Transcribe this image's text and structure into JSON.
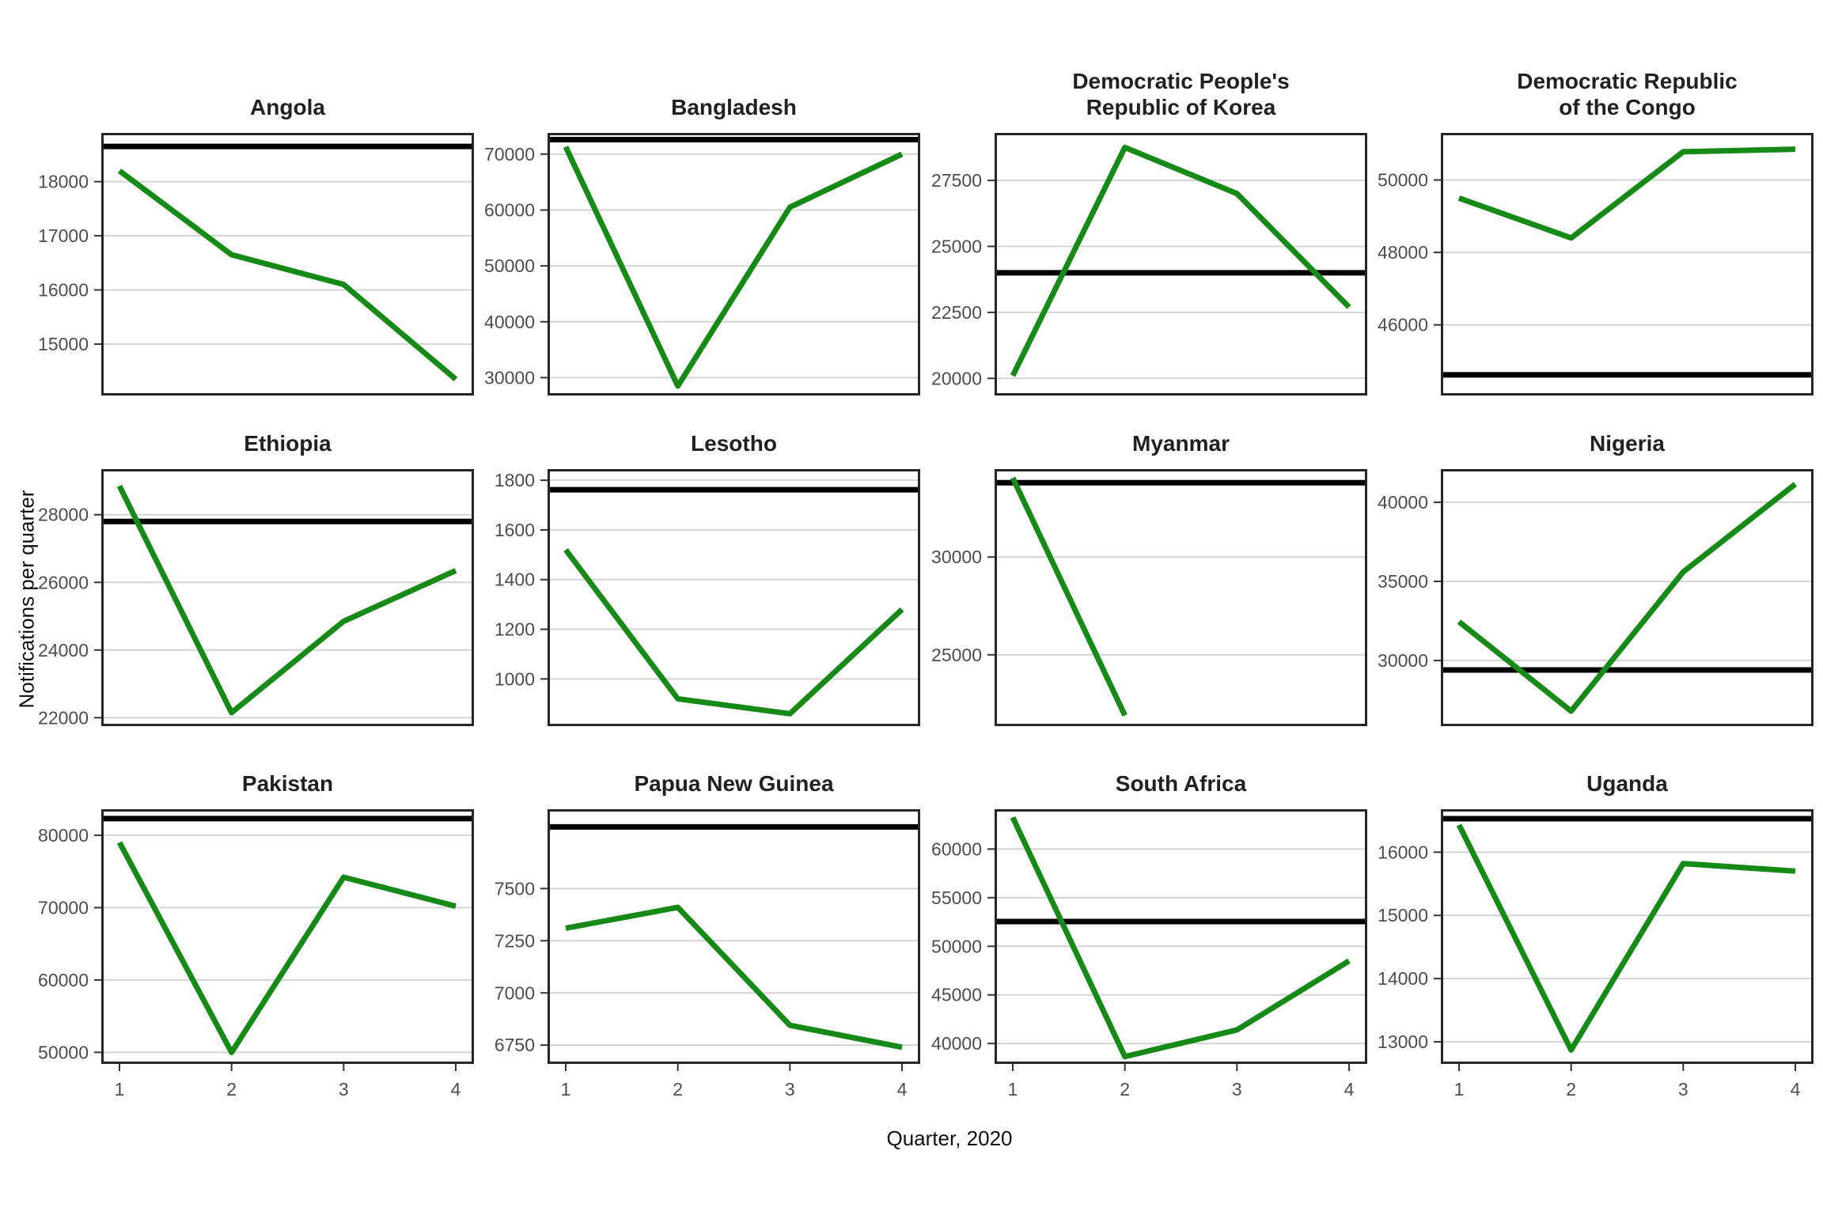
{
  "chart_data": {
    "type": "line",
    "xlabel": "Quarter, 2020",
    "ylabel": "Notifications per quarter",
    "x": [
      1,
      2,
      3,
      4
    ],
    "x_ticks": [
      "1",
      "2",
      "3",
      "4"
    ],
    "grid": "horizontal-only",
    "legend": null,
    "series_color": "#168a16",
    "reference_line_color": "#000000",
    "facets": [
      {
        "title": "Angola",
        "values": [
          18200,
          16650,
          16100,
          14350
        ],
        "reference": 18650,
        "yticks": [
          15000,
          16000,
          17000,
          18000
        ],
        "ylim": [
          14050,
          18900
        ]
      },
      {
        "title": "Bangladesh",
        "values": [
          71300,
          28500,
          60500,
          70000
        ],
        "reference": 72600,
        "yticks": [
          30000,
          40000,
          50000,
          60000,
          70000
        ],
        "ylim": [
          26800,
          73800
        ]
      },
      {
        "title": "Democratic People's\nRepublic of Korea",
        "values": [
          20100,
          28750,
          27000,
          22700
        ],
        "reference": 24000,
        "yticks": [
          20000,
          22500,
          25000,
          27500
        ],
        "ylim": [
          19350,
          29300
        ]
      },
      {
        "title": "Democratic Republic\nof the Congo",
        "values": [
          49500,
          48400,
          50780,
          50850
        ],
        "reference": 44620,
        "yticks": [
          46000,
          48000,
          50000
        ],
        "ylim": [
          44050,
          51300
        ]
      },
      {
        "title": "Ethiopia",
        "values": [
          28850,
          22150,
          24850,
          26350
        ],
        "reference": 27800,
        "yticks": [
          22000,
          24000,
          26000,
          28000
        ],
        "ylim": [
          21750,
          29350
        ]
      },
      {
        "title": "Lesotho",
        "values": [
          1520,
          920,
          860,
          1280
        ],
        "reference": 1762,
        "yticks": [
          1000,
          1200,
          1400,
          1600,
          1800
        ],
        "ylim": [
          810,
          1845
        ]
      },
      {
        "title": "Myanmar",
        "values": [
          34050,
          21900,
          null,
          null
        ],
        "reference": 33800,
        "yticks": [
          25000,
          30000
        ],
        "ylim": [
          21350,
          34500
        ]
      },
      {
        "title": "Nigeria",
        "values": [
          32450,
          26800,
          35600,
          41150
        ],
        "reference": 29400,
        "yticks": [
          30000,
          35000,
          40000
        ],
        "ylim": [
          25850,
          42100
        ]
      },
      {
        "title": "Pakistan",
        "values": [
          79000,
          50000,
          74200,
          70200
        ],
        "reference": 82300,
        "yticks": [
          50000,
          60000,
          70000,
          80000
        ],
        "ylim": [
          48400,
          83600
        ]
      },
      {
        "title": "Papua New Guinea",
        "values": [
          7310,
          7410,
          6845,
          6740
        ],
        "reference": 7795,
        "yticks": [
          6750,
          7000,
          7250,
          7500
        ],
        "ylim": [
          6660,
          7880
        ]
      },
      {
        "title": "South Africa",
        "values": [
          63250,
          38650,
          41400,
          48500
        ],
        "reference": 52550,
        "yticks": [
          40000,
          45000,
          50000,
          55000,
          60000
        ],
        "ylim": [
          37900,
          64100
        ]
      },
      {
        "title": "Uganda",
        "values": [
          16430,
          12870,
          15820,
          15700
        ],
        "reference": 16530,
        "yticks": [
          13000,
          14000,
          15000,
          16000
        ],
        "ylim": [
          12650,
          16680
        ]
      }
    ]
  }
}
